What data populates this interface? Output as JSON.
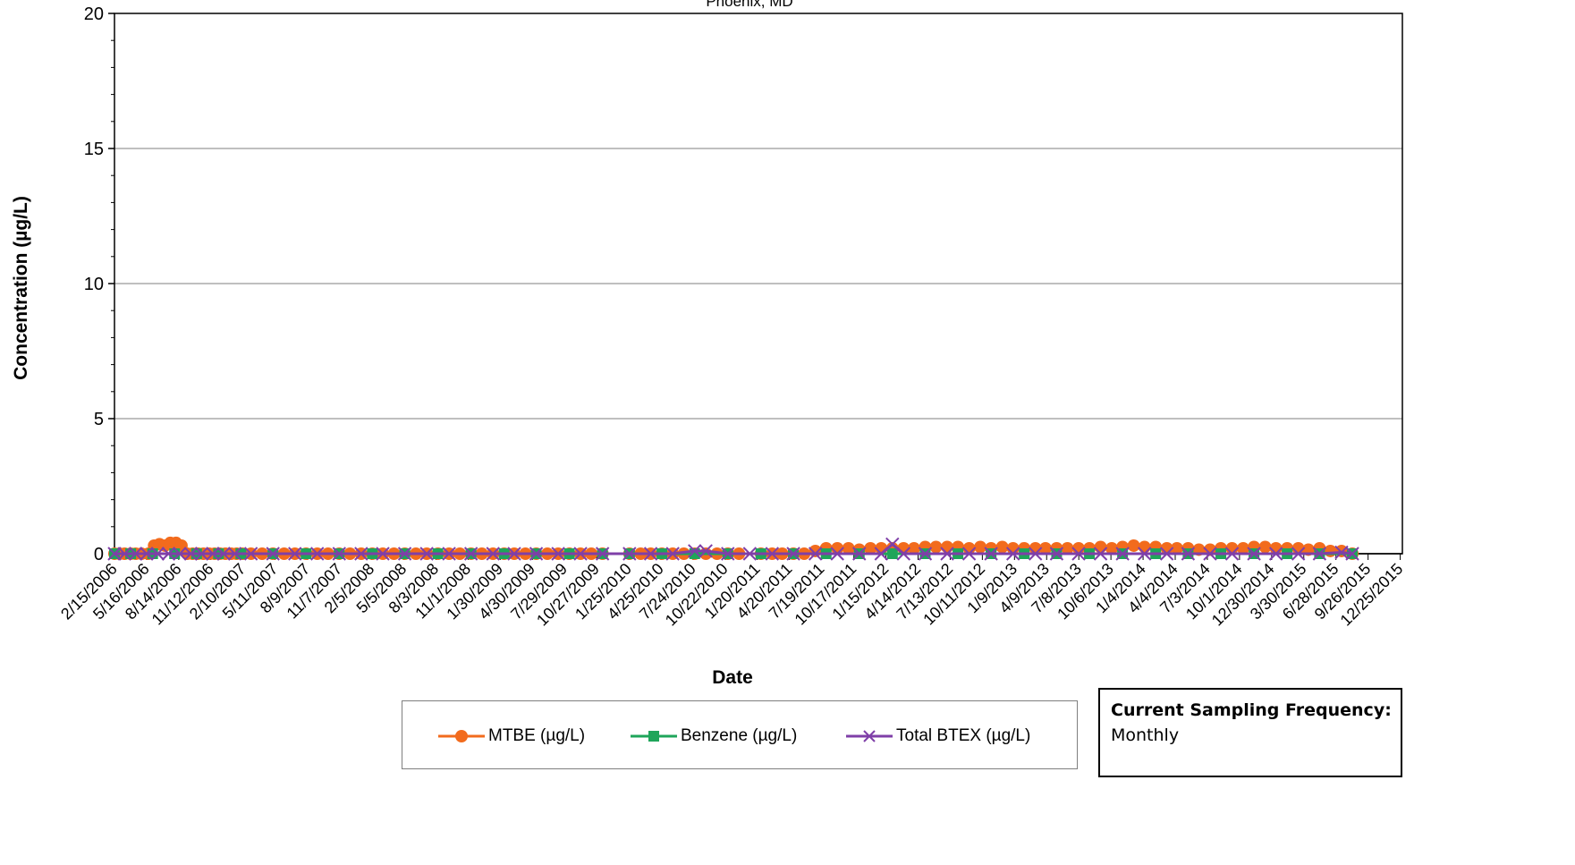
{
  "chart_data": {
    "type": "line",
    "title": "Phoenix, MD",
    "xlabel": "Date",
    "ylabel": "Concentration (µg/L)",
    "ylim": [
      0,
      20
    ],
    "yticks": [
      "0",
      "5",
      "10",
      "15",
      "20"
    ],
    "grid": true,
    "legend_position": "bottom",
    "x_tick_labels": [
      "2/15/2006",
      "5/16/2006",
      "8/14/2006",
      "11/12/2006",
      "2/10/2007",
      "5/11/2007",
      "8/9/2007",
      "11/7/2007",
      "2/5/2008",
      "5/5/2008",
      "8/3/2008",
      "11/1/2008",
      "1/30/2009",
      "4/30/2009",
      "7/29/2009",
      "10/27/2009",
      "1/25/2010",
      "4/25/2010",
      "7/24/2010",
      "10/22/2010",
      "1/20/2011",
      "4/20/2011",
      "7/19/2011",
      "10/17/2011",
      "1/15/2012",
      "4/14/2012",
      "7/13/2012",
      "10/11/2012",
      "1/9/2013",
      "4/9/2013",
      "7/8/2013",
      "10/6/2013",
      "1/4/2014",
      "4/4/2014",
      "7/3/2014",
      "10/1/2014",
      "12/30/2014",
      "3/30/2015",
      "6/28/2015",
      "9/26/2015",
      "12/25/2015"
    ],
    "series": [
      {
        "name": "MTBE (µg/L)",
        "color": "#f26b1d",
        "marker": "circle",
        "points": [
          [
            "2/15/2006",
            0
          ],
          [
            "3/1/2006",
            0
          ],
          [
            "3/15/2006",
            0
          ],
          [
            "4/1/2006",
            0
          ],
          [
            "4/15/2006",
            0
          ],
          [
            "5/1/2006",
            0
          ],
          [
            "5/20/2006",
            0
          ],
          [
            "6/5/2006",
            0.3
          ],
          [
            "6/20/2006",
            0.35
          ],
          [
            "7/5/2006",
            0.3
          ],
          [
            "7/20/2006",
            0.4
          ],
          [
            "8/5/2006",
            0.4
          ],
          [
            "8/20/2006",
            0.3
          ],
          [
            "9/5/2006",
            0
          ],
          [
            "9/20/2006",
            0
          ],
          [
            "10/5/2006",
            0
          ],
          [
            "10/20/2006",
            0
          ],
          [
            "11/5/2006",
            0
          ],
          [
            "11/20/2006",
            0
          ],
          [
            "12/5/2006",
            0
          ],
          [
            "12/20/2006",
            0
          ],
          [
            "1/5/2007",
            0
          ],
          [
            "1/20/2007",
            0
          ],
          [
            "2/5/2007",
            0
          ],
          [
            "3/1/2007",
            0
          ],
          [
            "4/1/2007",
            0
          ],
          [
            "5/1/2007",
            0
          ],
          [
            "6/1/2007",
            0
          ],
          [
            "7/1/2007",
            0
          ],
          [
            "8/1/2007",
            0
          ],
          [
            "9/1/2007",
            0
          ],
          [
            "10/1/2007",
            0
          ],
          [
            "11/1/2007",
            0
          ],
          [
            "12/1/2007",
            0
          ],
          [
            "1/1/2008",
            0
          ],
          [
            "2/1/2008",
            0
          ],
          [
            "3/1/2008",
            0
          ],
          [
            "4/1/2008",
            0
          ],
          [
            "5/1/2008",
            0
          ],
          [
            "6/1/2008",
            0
          ],
          [
            "7/1/2008",
            0
          ],
          [
            "8/1/2008",
            0
          ],
          [
            "9/1/2008",
            0
          ],
          [
            "10/1/2008",
            0
          ],
          [
            "11/1/2008",
            0
          ],
          [
            "12/1/2008",
            0
          ],
          [
            "1/1/2009",
            0
          ],
          [
            "2/1/2009",
            0
          ],
          [
            "3/1/2009",
            0
          ],
          [
            "4/1/2009",
            0
          ],
          [
            "5/1/2009",
            0
          ],
          [
            "6/1/2009",
            0
          ],
          [
            "7/1/2009",
            0
          ],
          [
            "8/1/2009",
            0
          ],
          [
            "9/1/2009",
            0
          ],
          [
            "10/1/2009",
            0
          ],
          [
            "11/1/2009",
            0
          ],
          [
            "1/15/2010",
            0
          ],
          [
            "2/15/2010",
            0
          ],
          [
            "3/15/2010",
            0
          ],
          [
            "4/15/2010",
            0
          ],
          [
            "5/15/2010",
            0
          ],
          [
            "6/15/2010",
            0
          ],
          [
            "7/15/2010",
            0
          ],
          [
            "8/15/2010",
            0
          ],
          [
            "9/15/2010",
            0
          ],
          [
            "10/15/2010",
            0
          ],
          [
            "11/15/2010",
            0
          ],
          [
            "1/15/2011",
            0
          ],
          [
            "2/15/2011",
            0
          ],
          [
            "3/15/2011",
            0
          ],
          [
            "4/15/2011",
            0
          ],
          [
            "5/15/2011",
            0
          ],
          [
            "6/15/2011",
            0.1
          ],
          [
            "7/15/2011",
            0.2
          ],
          [
            "8/15/2011",
            0.2
          ],
          [
            "9/15/2011",
            0.2
          ],
          [
            "10/15/2011",
            0.15
          ],
          [
            "11/15/2011",
            0.2
          ],
          [
            "12/15/2011",
            0.2
          ],
          [
            "1/15/2012",
            0.2
          ],
          [
            "2/15/2012",
            0.2
          ],
          [
            "3/15/2012",
            0.2
          ],
          [
            "4/15/2012",
            0.25
          ],
          [
            "5/15/2012",
            0.25
          ],
          [
            "6/15/2012",
            0.25
          ],
          [
            "7/15/2012",
            0.25
          ],
          [
            "8/15/2012",
            0.2
          ],
          [
            "9/15/2012",
            0.25
          ],
          [
            "10/15/2012",
            0.2
          ],
          [
            "11/15/2012",
            0.25
          ],
          [
            "12/15/2012",
            0.2
          ],
          [
            "1/15/2013",
            0.2
          ],
          [
            "2/15/2013",
            0.2
          ],
          [
            "3/15/2013",
            0.2
          ],
          [
            "4/15/2013",
            0.2
          ],
          [
            "5/15/2013",
            0.2
          ],
          [
            "6/15/2013",
            0.2
          ],
          [
            "7/15/2013",
            0.2
          ],
          [
            "8/15/2013",
            0.25
          ],
          [
            "9/15/2013",
            0.2
          ],
          [
            "10/15/2013",
            0.25
          ],
          [
            "11/15/2013",
            0.3
          ],
          [
            "12/15/2013",
            0.25
          ],
          [
            "1/15/2014",
            0.25
          ],
          [
            "2/15/2014",
            0.2
          ],
          [
            "3/15/2014",
            0.2
          ],
          [
            "4/15/2014",
            0.2
          ],
          [
            "5/15/2014",
            0.15
          ],
          [
            "6/15/2014",
            0.15
          ],
          [
            "7/15/2014",
            0.2
          ],
          [
            "8/15/2014",
            0.2
          ],
          [
            "9/15/2014",
            0.2
          ],
          [
            "10/15/2014",
            0.25
          ],
          [
            "11/15/2014",
            0.25
          ],
          [
            "12/15/2014",
            0.2
          ],
          [
            "1/15/2015",
            0.2
          ],
          [
            "2/15/2015",
            0.2
          ],
          [
            "3/15/2015",
            0.15
          ],
          [
            "4/15/2015",
            0.2
          ],
          [
            "5/15/2015",
            0.1
          ],
          [
            "6/15/2015",
            0.1
          ],
          [
            "7/15/2015",
            0
          ]
        ]
      },
      {
        "name": "Benzene (µg/L)",
        "color": "#1fa55a",
        "marker": "square",
        "points": [
          [
            "2/15/2006",
            0
          ],
          [
            "4/1/2006",
            0
          ],
          [
            "6/1/2006",
            0
          ],
          [
            "8/1/2006",
            0
          ],
          [
            "10/1/2006",
            0
          ],
          [
            "12/1/2006",
            0
          ],
          [
            "2/1/2007",
            0
          ],
          [
            "5/1/2007",
            0
          ],
          [
            "8/1/2007",
            0
          ],
          [
            "11/1/2007",
            0
          ],
          [
            "2/1/2008",
            0
          ],
          [
            "5/1/2008",
            0
          ],
          [
            "8/1/2008",
            0
          ],
          [
            "11/1/2008",
            0
          ],
          [
            "2/1/2009",
            0
          ],
          [
            "5/1/2009",
            0
          ],
          [
            "8/1/2009",
            0
          ],
          [
            "11/1/2009",
            0
          ],
          [
            "1/15/2010",
            0
          ],
          [
            "4/15/2010",
            0
          ],
          [
            "7/15/2010",
            0
          ],
          [
            "10/15/2010",
            0
          ],
          [
            "1/15/2011",
            0
          ],
          [
            "4/15/2011",
            0
          ],
          [
            "7/15/2011",
            0
          ],
          [
            "10/15/2011",
            0
          ],
          [
            "1/15/2012",
            0
          ],
          [
            "4/15/2012",
            0
          ],
          [
            "7/15/2012",
            0
          ],
          [
            "10/15/2012",
            0
          ],
          [
            "1/15/2013",
            0
          ],
          [
            "4/15/2013",
            0
          ],
          [
            "7/15/2013",
            0
          ],
          [
            "10/15/2013",
            0
          ],
          [
            "1/15/2014",
            0
          ],
          [
            "4/15/2014",
            0
          ],
          [
            "7/15/2014",
            0
          ],
          [
            "10/15/2014",
            0
          ],
          [
            "1/15/2015",
            0
          ],
          [
            "4/15/2015",
            0
          ],
          [
            "7/15/2015",
            0
          ]
        ]
      },
      {
        "name": "Total BTEX (µg/L)",
        "color": "#7f3fa8",
        "marker": "x",
        "points": [
          [
            "2/15/2006",
            0
          ],
          [
            "3/15/2006",
            0
          ],
          [
            "4/15/2006",
            0
          ],
          [
            "5/15/2006",
            0
          ],
          [
            "6/15/2006",
            0
          ],
          [
            "7/15/2006",
            0
          ],
          [
            "8/15/2006",
            0
          ],
          [
            "9/15/2006",
            0
          ],
          [
            "10/15/2006",
            0
          ],
          [
            "11/15/2006",
            0
          ],
          [
            "12/15/2006",
            0
          ],
          [
            "1/15/2007",
            0
          ],
          [
            "3/1/2007",
            0
          ],
          [
            "5/1/2007",
            0
          ],
          [
            "7/1/2007",
            0
          ],
          [
            "9/1/2007",
            0
          ],
          [
            "11/1/2007",
            0
          ],
          [
            "1/1/2008",
            0
          ],
          [
            "3/1/2008",
            0
          ],
          [
            "5/1/2008",
            0
          ],
          [
            "7/1/2008",
            0
          ],
          [
            "9/1/2008",
            0
          ],
          [
            "11/1/2008",
            0
          ],
          [
            "1/1/2009",
            0
          ],
          [
            "3/1/2009",
            0
          ],
          [
            "5/1/2009",
            0
          ],
          [
            "7/1/2009",
            0
          ],
          [
            "9/1/2009",
            0
          ],
          [
            "11/1/2009",
            0
          ],
          [
            "1/15/2010",
            0
          ],
          [
            "3/15/2010",
            0
          ],
          [
            "5/15/2010",
            0
          ],
          [
            "7/15/2010",
            0.1
          ],
          [
            "8/15/2010",
            0.1
          ],
          [
            "10/15/2010",
            0
          ],
          [
            "12/15/2010",
            0
          ],
          [
            "2/15/2011",
            0
          ],
          [
            "4/15/2011",
            0
          ],
          [
            "6/15/2011",
            0
          ],
          [
            "8/15/2011",
            0
          ],
          [
            "10/15/2011",
            0
          ],
          [
            "12/15/2011",
            0
          ],
          [
            "1/15/2012",
            0.35
          ],
          [
            "2/15/2012",
            0
          ],
          [
            "4/15/2012",
            0
          ],
          [
            "6/15/2012",
            0
          ],
          [
            "8/15/2012",
            0
          ],
          [
            "10/15/2012",
            0
          ],
          [
            "12/15/2012",
            0
          ],
          [
            "2/15/2013",
            0
          ],
          [
            "4/15/2013",
            0
          ],
          [
            "6/15/2013",
            0
          ],
          [
            "8/15/2013",
            0
          ],
          [
            "10/15/2013",
            0
          ],
          [
            "12/15/2013",
            0
          ],
          [
            "2/15/2014",
            0
          ],
          [
            "4/15/2014",
            0
          ],
          [
            "6/15/2014",
            0
          ],
          [
            "8/15/2014",
            0
          ],
          [
            "10/15/2014",
            0
          ],
          [
            "12/15/2014",
            0
          ],
          [
            "2/15/2015",
            0
          ],
          [
            "4/15/2015",
            0
          ],
          [
            "6/15/2015",
            0.05
          ],
          [
            "7/15/2015",
            0
          ]
        ]
      }
    ]
  },
  "info_box": {
    "label": "Current Sampling Frequency:",
    "value": "Monthly"
  }
}
